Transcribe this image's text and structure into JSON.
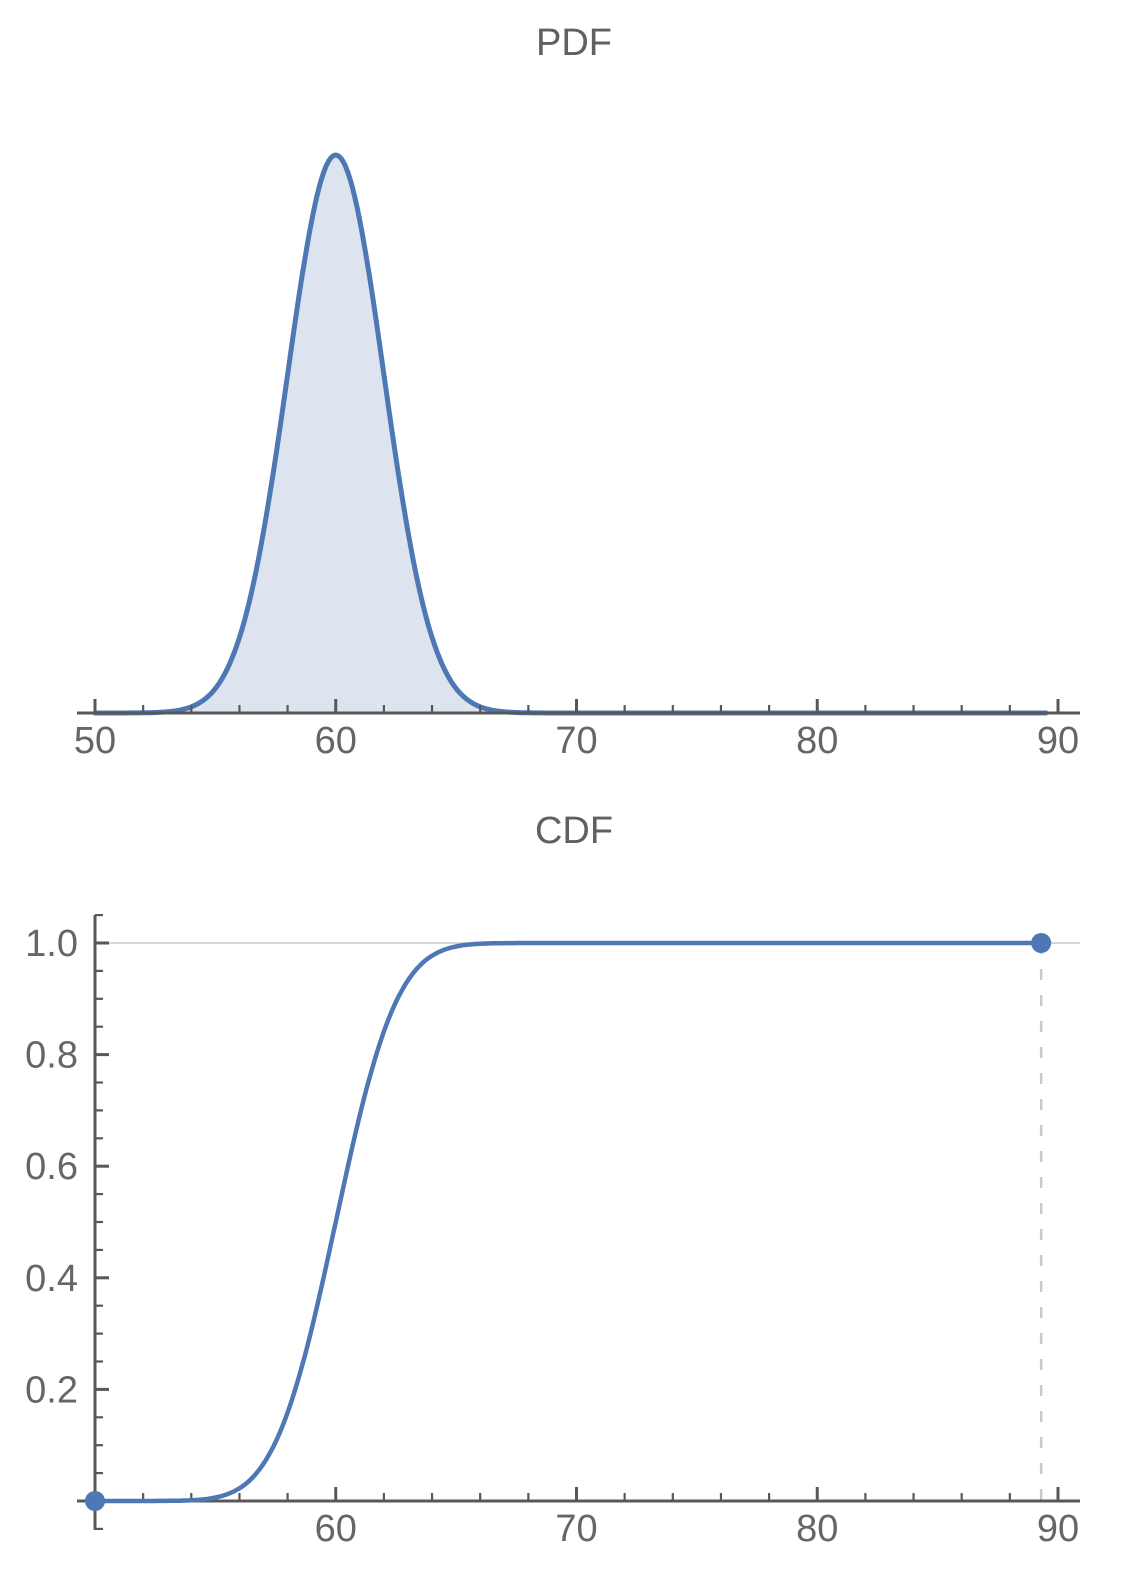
{
  "colors": {
    "curve": "#4e78b4",
    "area_fill": "#dde4ef",
    "axis": "#585858",
    "tick_label": "#666666",
    "title": "#606060",
    "gridline": "#c8c8c8",
    "dashed_guide": "#c9c9c9",
    "background": "#ffffff"
  },
  "chart_data": [
    {
      "type": "area",
      "title": "PDF",
      "distribution": {
        "family": "normal",
        "mean": 60,
        "sd": 2
      },
      "x_range": [
        50,
        90
      ],
      "curve_domain": [
        50,
        89.5
      ],
      "peak": {
        "x": 60,
        "y": 0.199
      },
      "x_ticks": [
        {
          "value": 50,
          "label": "50"
        },
        {
          "value": 60,
          "label": "60"
        },
        {
          "value": 70,
          "label": "70"
        },
        {
          "value": 80,
          "label": "80"
        },
        {
          "value": 90,
          "label": "90"
        }
      ],
      "x_minor_tick_step": 2,
      "y_axis_visible": false,
      "grid": false,
      "legend": null
    },
    {
      "type": "line",
      "title": "CDF",
      "distribution": {
        "family": "normal",
        "mean": 60,
        "sd": 2
      },
      "x_range": [
        50,
        90
      ],
      "y_range": [
        0,
        1
      ],
      "curve_domain": [
        50,
        89.3
      ],
      "key_points": [
        {
          "x": 60,
          "y": 0.5
        }
      ],
      "endpoints": [
        {
          "x": 50,
          "y": 0
        },
        {
          "x": 89.3,
          "y": 1
        }
      ],
      "x_ticks": [
        {
          "value": 60,
          "label": "60"
        },
        {
          "value": 70,
          "label": "70"
        },
        {
          "value": 80,
          "label": "80"
        },
        {
          "value": 90,
          "label": "90"
        }
      ],
      "x_major_tick_values": [
        50,
        60,
        70,
        80,
        90
      ],
      "x_minor_tick_step": 2,
      "y_ticks": [
        {
          "value": 0.2,
          "label": "0.2"
        },
        {
          "value": 0.4,
          "label": "0.4"
        },
        {
          "value": 0.6,
          "label": "0.6"
        },
        {
          "value": 0.8,
          "label": "0.8"
        },
        {
          "value": 1.0,
          "label": "1.0"
        }
      ],
      "y_minor_tick_step": 0.05,
      "guides": {
        "horizontal_gridline_y": 1.0,
        "dashed_vertical_x": 89.3
      },
      "grid": false,
      "legend": null
    }
  ]
}
